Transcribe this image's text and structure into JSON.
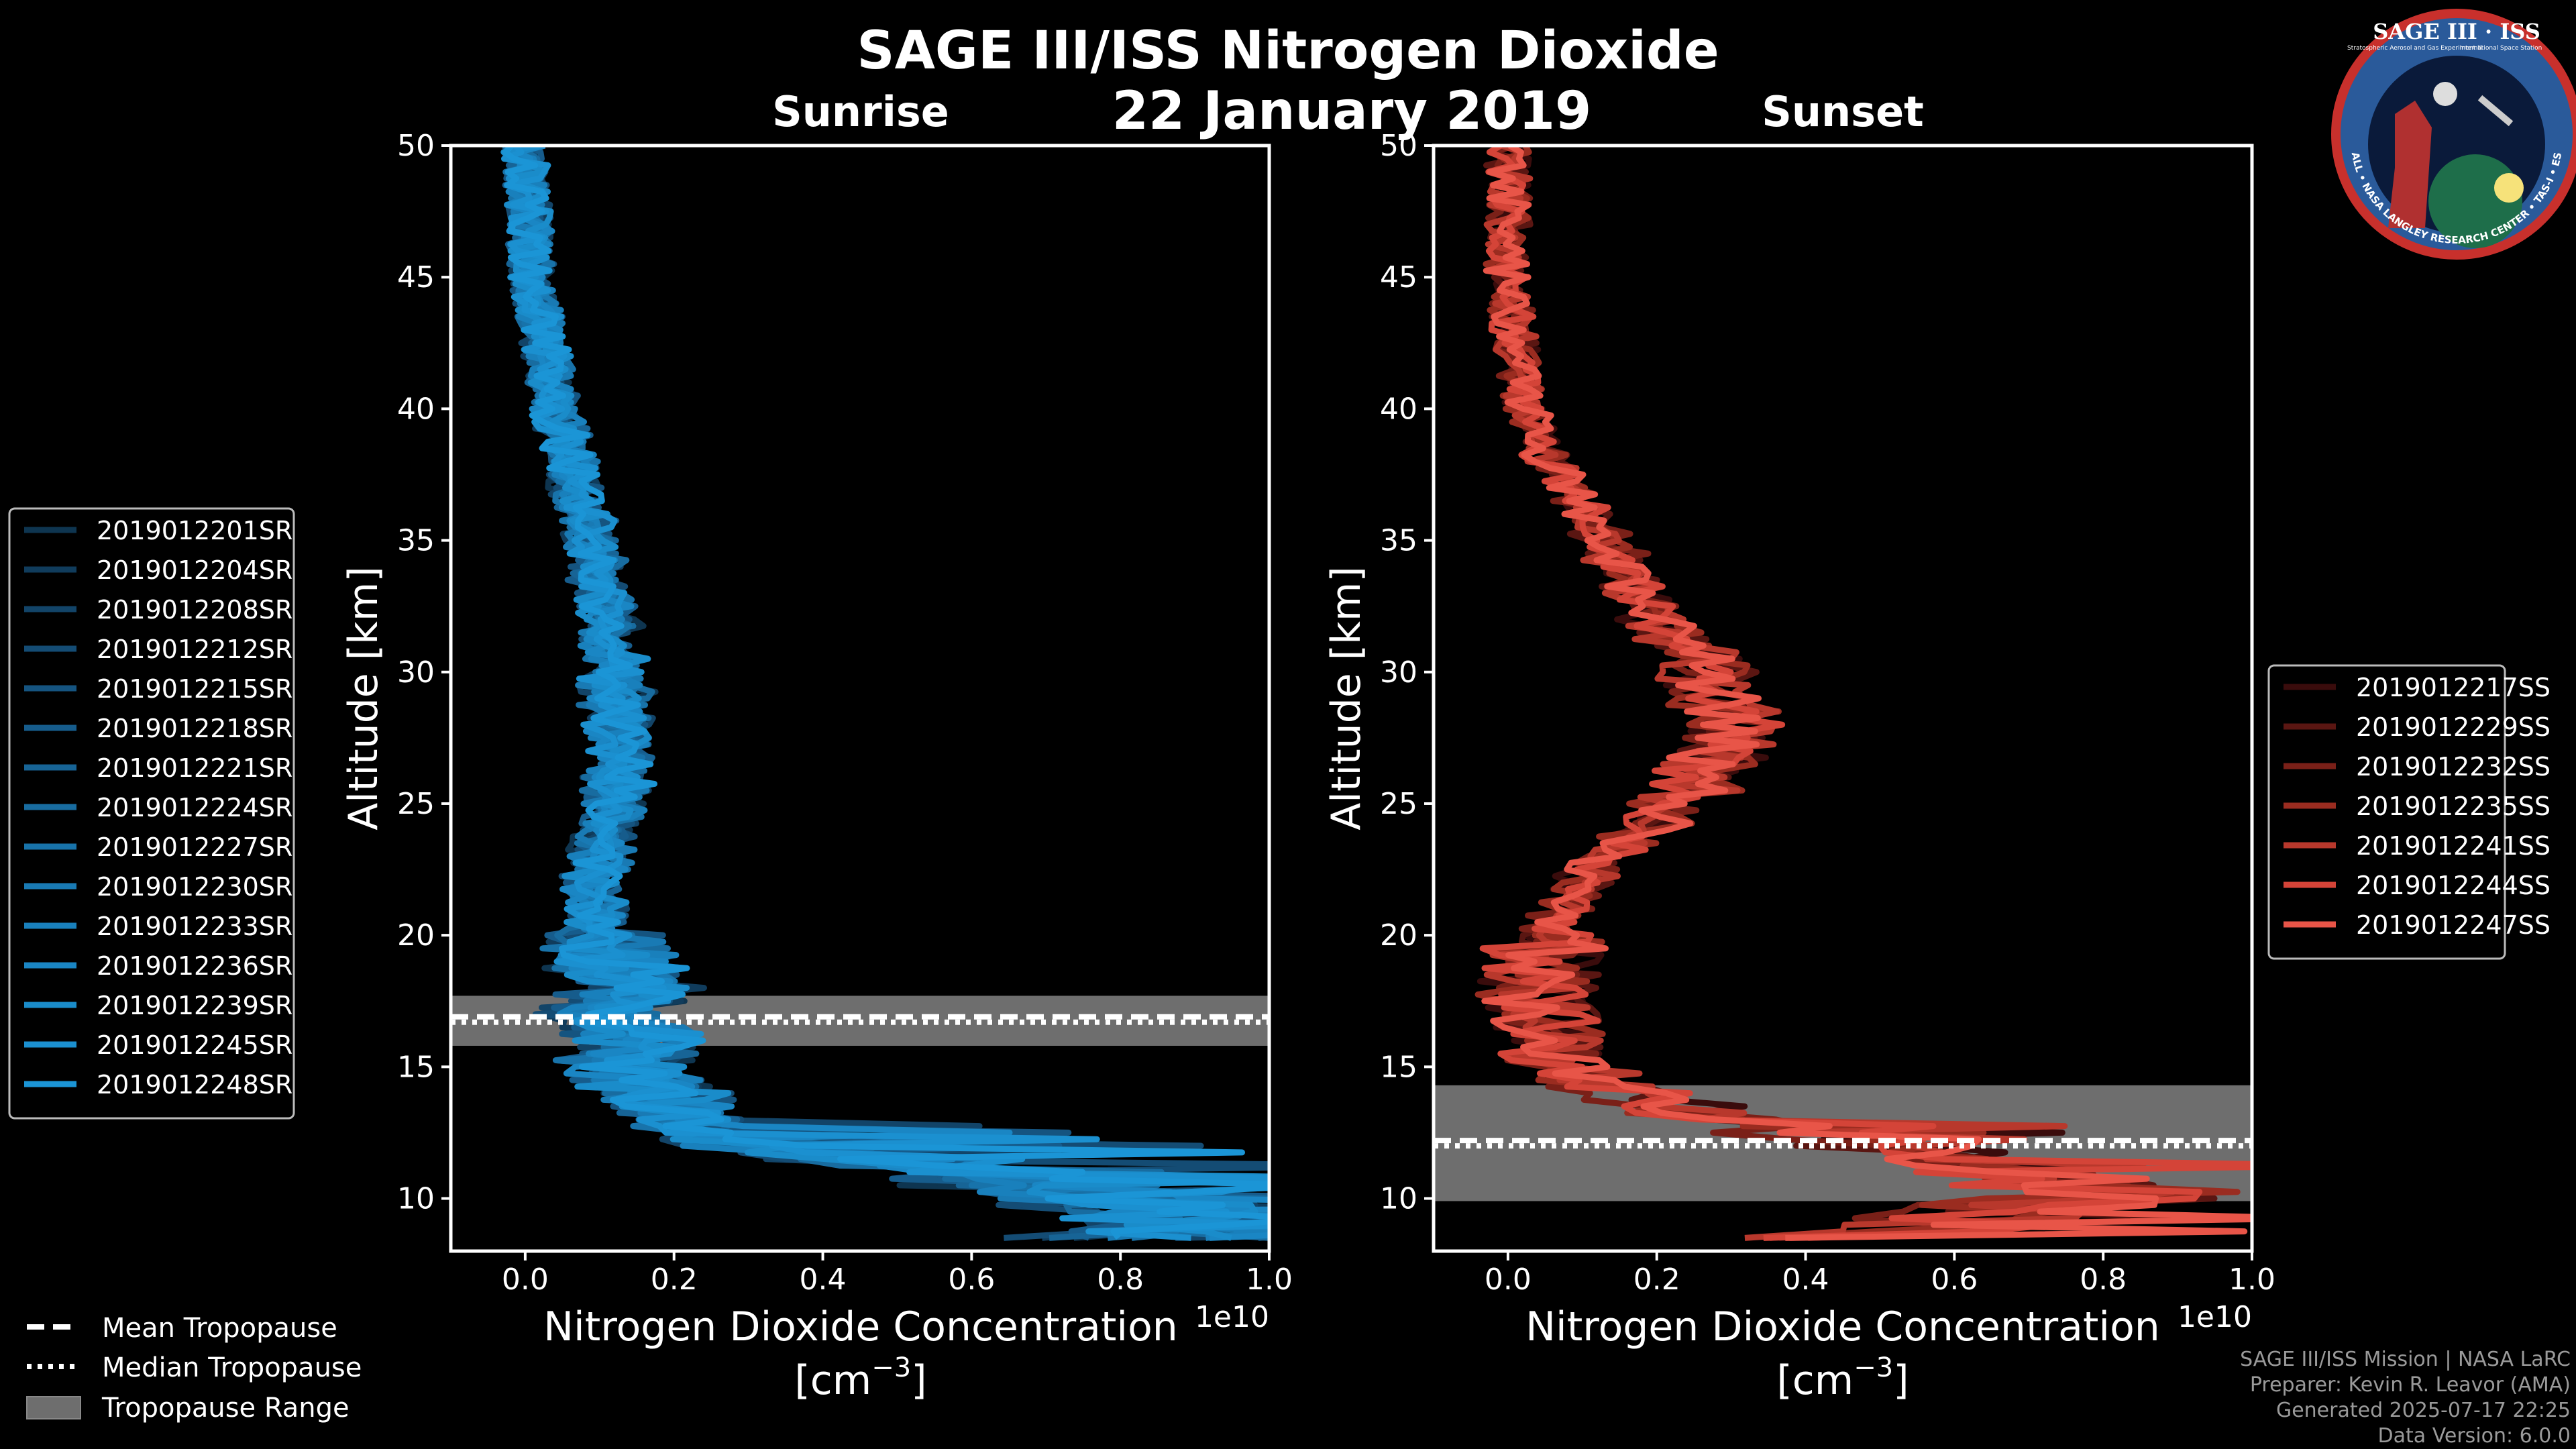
{
  "figure": {
    "title": "SAGE III/ISS Nitrogen Dioxide",
    "date": "22 January 2019",
    "credits": [
      "SAGE III/ISS Mission | NASA LaRC",
      "Preparer: Kevin R. Leavor (AMA)",
      "Generated 2025-07-17 22:25",
      "Data Version: 6.0.0"
    ]
  },
  "logo": {
    "title": "SAGE III · ISS",
    "text_left": "Stratospheric Aerosol and Gas Experiment III",
    "text_right": "International Space Station",
    "ring_text": "BALL • NASA LANGLEY RESEARCH CENTER • TAS-I • ESA"
  },
  "common_legend": {
    "mean_label": "Mean Tropopause",
    "median_label": "Median Tropopause",
    "range_label": "Tropopause Range"
  },
  "colors": {
    "sunrise": "#1a8fd0",
    "sunset": "#e8554a",
    "tropopause_range": "#6e6e6e",
    "background": "#000000",
    "axis": "#ffffff"
  },
  "chart_data": [
    {
      "type": "line",
      "panel": "sunrise",
      "title": "Sunrise",
      "xlabel": "Nitrogen Dioxide Concentration",
      "xunit": "[cm^-3]",
      "ylabel": "Altitude [km]",
      "xlim": [
        -0.1,
        1.0
      ],
      "ylim": [
        8,
        50
      ],
      "x_scale_label": "1e10",
      "x_ticks": [
        0.0,
        0.2,
        0.4,
        0.6,
        0.8,
        1.0
      ],
      "x_tick_labels": [
        "0.0",
        "0.2",
        "0.4",
        "0.6",
        "0.8",
        "1.0"
      ],
      "y_ticks": [
        10,
        15,
        20,
        25,
        30,
        35,
        40,
        45,
        50
      ],
      "tropopause": {
        "mean": 16.8,
        "median": 16.8,
        "min": 15.8,
        "max": 17.7
      },
      "legend_location": "left-outside",
      "mean_profile": [
        [
          50,
          0.0
        ],
        [
          45,
          0.01
        ],
        [
          40,
          0.04
        ],
        [
          35,
          0.09
        ],
        [
          30,
          0.12
        ],
        [
          26,
          0.13
        ],
        [
          22,
          0.09
        ],
        [
          20,
          0.1
        ],
        [
          18,
          0.15
        ],
        [
          17,
          0.1
        ],
        [
          16,
          0.15
        ],
        [
          15,
          0.12
        ],
        [
          14,
          0.17
        ],
        [
          13,
          0.2
        ],
        [
          12,
          0.3
        ],
        [
          11,
          0.6
        ],
        [
          10,
          0.8
        ],
        [
          9,
          0.9
        ],
        [
          8.5,
          0.8
        ]
      ],
      "series": [
        {
          "name": "2019012201SR",
          "color": "#0e3550"
        },
        {
          "name": "2019012204SR",
          "color": "#103c5c"
        },
        {
          "name": "2019012208SR",
          "color": "#124468"
        },
        {
          "name": "2019012212SR",
          "color": "#144c74"
        },
        {
          "name": "2019012215SR",
          "color": "#155480"
        },
        {
          "name": "2019012218SR",
          "color": "#165c8c"
        },
        {
          "name": "2019012221SR",
          "color": "#176496"
        },
        {
          "name": "2019012224SR",
          "color": "#186ca0"
        },
        {
          "name": "2019012227SR",
          "color": "#1873aa"
        },
        {
          "name": "2019012230SR",
          "color": "#197ab4"
        },
        {
          "name": "2019012233SR",
          "color": "#1980bc"
        },
        {
          "name": "2019012236SR",
          "color": "#1a86c4"
        },
        {
          "name": "2019012239SR",
          "color": "#1a8cca"
        },
        {
          "name": "2019012245SR",
          "color": "#1b90d0"
        },
        {
          "name": "2019012248SR",
          "color": "#1b95d6"
        }
      ]
    },
    {
      "type": "line",
      "panel": "sunset",
      "title": "Sunset",
      "xlabel": "Nitrogen Dioxide Concentration",
      "xunit": "[cm^-3]",
      "ylabel": "Altitude [km]",
      "xlim": [
        -0.1,
        1.0
      ],
      "ylim": [
        8,
        50
      ],
      "x_scale_label": "1e10",
      "x_ticks": [
        0.0,
        0.2,
        0.4,
        0.6,
        0.8,
        1.0
      ],
      "x_tick_labels": [
        "0.0",
        "0.2",
        "0.4",
        "0.6",
        "0.8",
        "1.0"
      ],
      "y_ticks": [
        10,
        15,
        20,
        25,
        30,
        35,
        40,
        45,
        50
      ],
      "tropopause": {
        "mean": 12.1,
        "median": 12.1,
        "min": 9.9,
        "max": 14.3
      },
      "legend_location": "right-outside",
      "mean_profile": [
        [
          50,
          0.0
        ],
        [
          45,
          0.0
        ],
        [
          40,
          0.02
        ],
        [
          38,
          0.06
        ],
        [
          35,
          0.13
        ],
        [
          32,
          0.2
        ],
        [
          30,
          0.27
        ],
        [
          28,
          0.3
        ],
        [
          26,
          0.27
        ],
        [
          24,
          0.18
        ],
        [
          22,
          0.1
        ],
        [
          20,
          0.05
        ],
        [
          18,
          0.04
        ],
        [
          16,
          0.06
        ],
        [
          15,
          0.08
        ],
        [
          14,
          0.15
        ],
        [
          13,
          0.3
        ],
        [
          12,
          0.5
        ],
        [
          11,
          0.7
        ],
        [
          10,
          0.8
        ],
        [
          9,
          0.6
        ],
        [
          8.5,
          0.4
        ]
      ],
      "series": [
        {
          "name": "2019012217SS",
          "color": "#3a0c0c"
        },
        {
          "name": "2019012229SS",
          "color": "#5a1612"
        },
        {
          "name": "2019012232SS",
          "color": "#7a2018"
        },
        {
          "name": "2019012235SS",
          "color": "#9a2c20"
        },
        {
          "name": "2019012241SS",
          "color": "#b8382c"
        },
        {
          "name": "2019012244SS",
          "color": "#d44438"
        },
        {
          "name": "2019012247SS",
          "color": "#e85548"
        }
      ]
    }
  ]
}
